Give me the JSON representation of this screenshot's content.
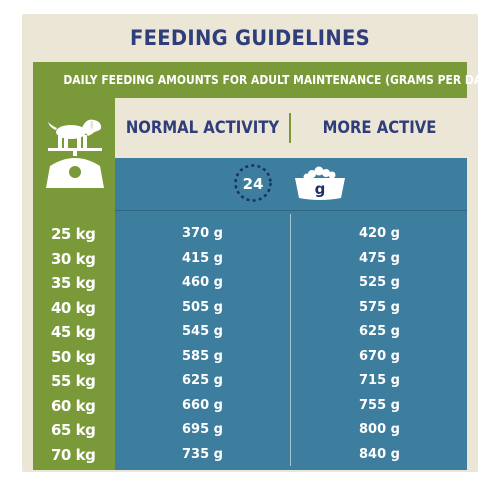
{
  "header": {
    "title": "FEEDING GUIDELINES",
    "subtitle": "DAILY FEEDING AMOUNTS FOR ADULT MAINTENANCE (GRAMS PER DAY)"
  },
  "columns": {
    "normal": "NORMAL ACTIVITY",
    "active": "MORE ACTIVE"
  },
  "icons": {
    "clock_label": "24",
    "bowl_label": "g",
    "weight": "dog-on-scale-icon",
    "clock": "clock-24h-icon",
    "bowl": "food-bowl-icon"
  },
  "rows": [
    {
      "weight": "25 kg",
      "normal": "370 g",
      "active": "420 g"
    },
    {
      "weight": "30 kg",
      "normal": "415 g",
      "active": "475 g"
    },
    {
      "weight": "35 kg",
      "normal": "460 g",
      "active": "525 g"
    },
    {
      "weight": "40 kg",
      "normal": "505 g",
      "active": "575 g"
    },
    {
      "weight": "45 kg",
      "normal": "545 g",
      "active": "625 g"
    },
    {
      "weight": "50 kg",
      "normal": "585 g",
      "active": "670 g"
    },
    {
      "weight": "55 kg",
      "normal": "625 g",
      "active": "715 g"
    },
    {
      "weight": "60 kg",
      "normal": "660 g",
      "active": "755 g"
    },
    {
      "weight": "65 kg",
      "normal": "695 g",
      "active": "800 g"
    },
    {
      "weight": "70 kg",
      "normal": "735 g",
      "active": "840 g"
    }
  ],
  "colors": {
    "navy": "#2f3d7a",
    "green": "#7a9a3a",
    "blue": "#3d7d9e",
    "cream": "#ece6d6"
  }
}
